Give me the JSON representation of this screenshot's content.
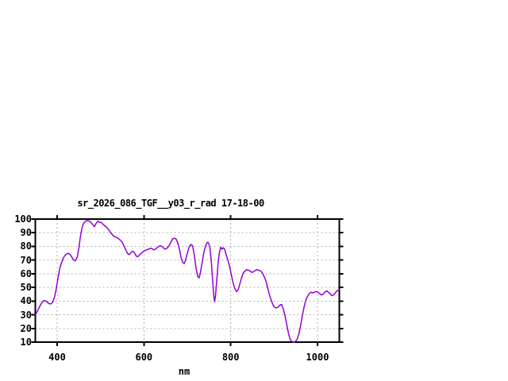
{
  "window": {
    "background_color": "#ffffff",
    "text_color": "#000000"
  },
  "chart_data": {
    "type": "line",
    "title": "sr_2026_086_TGF__y03_r_rad 17-18-00",
    "xlabel": "nm",
    "ylabel": "",
    "xlim": [
      350,
      1050
    ],
    "ylim": [
      10,
      100
    ],
    "x_ticks": [
      400,
      600,
      800,
      1000
    ],
    "y_ticks": [
      10,
      20,
      30,
      40,
      50,
      60,
      70,
      80,
      90,
      100
    ],
    "grid": true,
    "legend_position": "none",
    "line_color": "#9400d3",
    "grid_color": "#b0b0b0",
    "axis_color": "#000000",
    "series": [
      {
        "points": [
          [
            350,
            30
          ],
          [
            354,
            32.5
          ],
          [
            358,
            35
          ],
          [
            362,
            37.5
          ],
          [
            366,
            39.5
          ],
          [
            370,
            40.5
          ],
          [
            374,
            40
          ],
          [
            378,
            39
          ],
          [
            382,
            38
          ],
          [
            386,
            38
          ],
          [
            390,
            39.5
          ],
          [
            394,
            43
          ],
          [
            398,
            49
          ],
          [
            402,
            57
          ],
          [
            406,
            64
          ],
          [
            410,
            68
          ],
          [
            414,
            71.5
          ],
          [
            418,
            73.5
          ],
          [
            422,
            74.5
          ],
          [
            426,
            75
          ],
          [
            430,
            74
          ],
          [
            434,
            72
          ],
          [
            438,
            70
          ],
          [
            442,
            69.5
          ],
          [
            446,
            72
          ],
          [
            450,
            79
          ],
          [
            454,
            88
          ],
          [
            458,
            94.5
          ],
          [
            462,
            97.5
          ],
          [
            466,
            98.5
          ],
          [
            470,
            99
          ],
          [
            474,
            98.5
          ],
          [
            478,
            97.5
          ],
          [
            482,
            96
          ],
          [
            486,
            94.5
          ],
          [
            490,
            97
          ],
          [
            494,
            98.5
          ],
          [
            498,
            97.5
          ],
          [
            502,
            97.5
          ],
          [
            506,
            96
          ],
          [
            510,
            95
          ],
          [
            514,
            94
          ],
          [
            518,
            92.5
          ],
          [
            522,
            90.5
          ],
          [
            526,
            89
          ],
          [
            530,
            87.5
          ],
          [
            534,
            87
          ],
          [
            538,
            86.5
          ],
          [
            542,
            85.5
          ],
          [
            546,
            84.5
          ],
          [
            550,
            83
          ],
          [
            554,
            80.5
          ],
          [
            558,
            77.5
          ],
          [
            562,
            75
          ],
          [
            566,
            74
          ],
          [
            570,
            75.5
          ],
          [
            574,
            76.5
          ],
          [
            578,
            75.5
          ],
          [
            582,
            73
          ],
          [
            586,
            72.5
          ],
          [
            590,
            74
          ],
          [
            594,
            75
          ],
          [
            598,
            76
          ],
          [
            602,
            77
          ],
          [
            606,
            77.5
          ],
          [
            610,
            78
          ],
          [
            614,
            78.5
          ],
          [
            618,
            78.5
          ],
          [
            622,
            77.5
          ],
          [
            626,
            78
          ],
          [
            630,
            79
          ],
          [
            634,
            80
          ],
          [
            638,
            80.5
          ],
          [
            642,
            80
          ],
          [
            646,
            78.5
          ],
          [
            650,
            78
          ],
          [
            654,
            79
          ],
          [
            658,
            80.5
          ],
          [
            662,
            83
          ],
          [
            666,
            85.5
          ],
          [
            670,
            86
          ],
          [
            674,
            85.5
          ],
          [
            678,
            82.5
          ],
          [
            682,
            77.5
          ],
          [
            686,
            71.5
          ],
          [
            690,
            68
          ],
          [
            693,
            67.5
          ],
          [
            696,
            70
          ],
          [
            700,
            75
          ],
          [
            704,
            79.5
          ],
          [
            708,
            81.5
          ],
          [
            712,
            80.5
          ],
          [
            716,
            74
          ],
          [
            720,
            64.5
          ],
          [
            724,
            58
          ],
          [
            727,
            57
          ],
          [
            730,
            60.5
          ],
          [
            734,
            68
          ],
          [
            738,
            75.5
          ],
          [
            742,
            80.5
          ],
          [
            746,
            83
          ],
          [
            749,
            82.5
          ],
          [
            752,
            79
          ],
          [
            755,
            70
          ],
          [
            758,
            57
          ],
          [
            761,
            44
          ],
          [
            763,
            39.5
          ],
          [
            765,
            44
          ],
          [
            768,
            56
          ],
          [
            771,
            68
          ],
          [
            774,
            75.5
          ],
          [
            777,
            79.5
          ],
          [
            780,
            78
          ],
          [
            783,
            79
          ],
          [
            786,
            78
          ],
          [
            789,
            74.5
          ],
          [
            793,
            70.5
          ],
          [
            797,
            66
          ],
          [
            801,
            60
          ],
          [
            805,
            54
          ],
          [
            809,
            49.5
          ],
          [
            813,
            47
          ],
          [
            817,
            48
          ],
          [
            821,
            52.5
          ],
          [
            825,
            57
          ],
          [
            829,
            60.5
          ],
          [
            833,
            62
          ],
          [
            837,
            63
          ],
          [
            841,
            62.5
          ],
          [
            845,
            62
          ],
          [
            849,
            61
          ],
          [
            853,
            61.5
          ],
          [
            857,
            62.5
          ],
          [
            861,
            63
          ],
          [
            865,
            62.5
          ],
          [
            869,
            62
          ],
          [
            873,
            60.5
          ],
          [
            877,
            58
          ],
          [
            881,
            55
          ],
          [
            885,
            50
          ],
          [
            889,
            45
          ],
          [
            893,
            41
          ],
          [
            897,
            37.5
          ],
          [
            901,
            35.5
          ],
          [
            905,
            35
          ],
          [
            909,
            35.5
          ],
          [
            913,
            37
          ],
          [
            917,
            37.5
          ],
          [
            921,
            34.5
          ],
          [
            925,
            29.5
          ],
          [
            929,
            23
          ],
          [
            933,
            16.5
          ],
          [
            937,
            12
          ],
          [
            941,
            10.5
          ],
          [
            945,
            10
          ],
          [
            949,
            10.5
          ],
          [
            953,
            12
          ],
          [
            957,
            16
          ],
          [
            961,
            22
          ],
          [
            965,
            29
          ],
          [
            969,
            35.5
          ],
          [
            973,
            40.5
          ],
          [
            977,
            43.5
          ],
          [
            981,
            45.5
          ],
          [
            985,
            46.5
          ],
          [
            989,
            46
          ],
          [
            993,
            46.5
          ],
          [
            997,
            47
          ],
          [
            1001,
            46.5
          ],
          [
            1005,
            45.5
          ],
          [
            1009,
            44.5
          ],
          [
            1013,
            45
          ],
          [
            1017,
            46.5
          ],
          [
            1021,
            47.5
          ],
          [
            1025,
            46.5
          ],
          [
            1029,
            45.5
          ],
          [
            1033,
            44
          ],
          [
            1037,
            44.5
          ],
          [
            1041,
            46
          ],
          [
            1045,
            47.5
          ],
          [
            1050,
            48.5
          ]
        ]
      }
    ]
  }
}
